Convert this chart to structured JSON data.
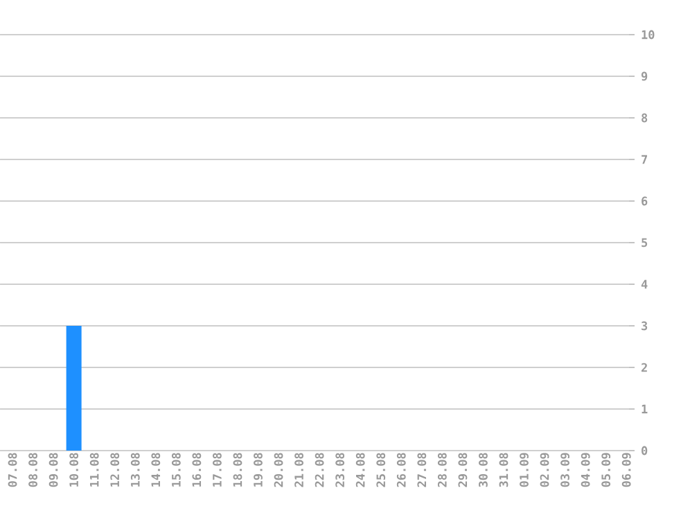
{
  "chart_data": {
    "type": "bar",
    "categories": [
      "07.08",
      "08.08",
      "09.08",
      "10.08",
      "11.08",
      "12.08",
      "13.08",
      "14.08",
      "15.08",
      "16.08",
      "17.08",
      "18.08",
      "19.08",
      "20.08",
      "21.08",
      "22.08",
      "23.08",
      "24.08",
      "25.08",
      "26.08",
      "27.08",
      "28.08",
      "29.08",
      "30.08",
      "31.08",
      "01.09",
      "02.09",
      "03.09",
      "04.09",
      "05.09",
      "06.09"
    ],
    "values": [
      0,
      0,
      0,
      3,
      0,
      0,
      0,
      0,
      0,
      0,
      0,
      0,
      0,
      0,
      0,
      0,
      0,
      0,
      0,
      0,
      0,
      0,
      0,
      0,
      0,
      0,
      0,
      0,
      0,
      0,
      0
    ],
    "color": "#1e90ff",
    "ylim": [
      0,
      10
    ],
    "yticks": [
      0,
      1,
      2,
      3,
      4,
      5,
      6,
      7,
      8,
      9,
      10
    ],
    "grid": "y"
  }
}
